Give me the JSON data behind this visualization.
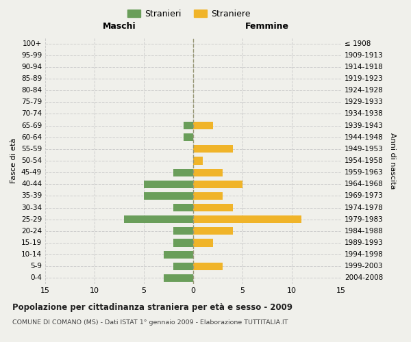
{
  "age_groups": [
    "0-4",
    "5-9",
    "10-14",
    "15-19",
    "20-24",
    "25-29",
    "30-34",
    "35-39",
    "40-44",
    "45-49",
    "50-54",
    "55-59",
    "60-64",
    "65-69",
    "70-74",
    "75-79",
    "80-84",
    "85-89",
    "90-94",
    "95-99",
    "100+"
  ],
  "birth_years": [
    "2004-2008",
    "1999-2003",
    "1994-1998",
    "1989-1993",
    "1984-1988",
    "1979-1983",
    "1974-1978",
    "1969-1973",
    "1964-1968",
    "1959-1963",
    "1954-1958",
    "1949-1953",
    "1944-1948",
    "1939-1943",
    "1934-1938",
    "1929-1933",
    "1924-1928",
    "1919-1923",
    "1914-1918",
    "1909-1913",
    "≤ 1908"
  ],
  "maschi": [
    3,
    2,
    3,
    2,
    2,
    7,
    2,
    5,
    5,
    2,
    0,
    0,
    1,
    1,
    0,
    0,
    0,
    0,
    0,
    0,
    0
  ],
  "femmine": [
    0,
    3,
    0,
    2,
    4,
    11,
    4,
    3,
    5,
    3,
    1,
    4,
    0,
    2,
    0,
    0,
    0,
    0,
    0,
    0,
    0
  ],
  "male_color": "#6a9e5a",
  "female_color": "#f0b429",
  "title": "Popolazione per cittadinanza straniera per età e sesso - 2009",
  "subtitle": "COMUNE DI COMANO (MS) - Dati ISTAT 1° gennaio 2009 - Elaborazione TUTTITALIA.IT",
  "xlabel_left": "Maschi",
  "xlabel_right": "Femmine",
  "ylabel_left": "Fasce di età",
  "ylabel_right": "Anni di nascita",
  "legend_male": "Stranieri",
  "legend_female": "Straniere",
  "xlim": 15,
  "background_color": "#f0f0eb",
  "grid_color": "#cccccc"
}
